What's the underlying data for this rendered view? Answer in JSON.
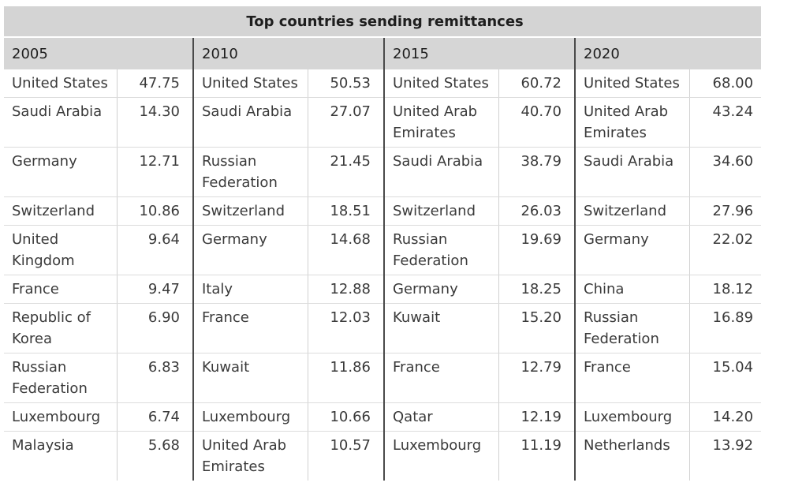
{
  "table": {
    "title": "Top countries sending remittances",
    "years": [
      "2005",
      "2010",
      "2015",
      "2020"
    ],
    "rows": [
      [
        [
          "United States",
          "47.75"
        ],
        [
          "United States",
          "50.53"
        ],
        [
          "United States",
          "60.72"
        ],
        [
          "United States",
          "68.00"
        ]
      ],
      [
        [
          "Saudi Arabia",
          "14.30"
        ],
        [
          "Saudi Arabia",
          "27.07"
        ],
        [
          "United Arab Emirates",
          "40.70"
        ],
        [
          "United Arab Emirates",
          "43.24"
        ]
      ],
      [
        [
          "Germany",
          "12.71"
        ],
        [
          "Russian Federation",
          "21.45"
        ],
        [
          "Saudi Arabia",
          "38.79"
        ],
        [
          "Saudi Arabia",
          "34.60"
        ]
      ],
      [
        [
          "Switzerland",
          "10.86"
        ],
        [
          "Switzerland",
          "18.51"
        ],
        [
          "Switzerland",
          "26.03"
        ],
        [
          "Switzerland",
          "27.96"
        ]
      ],
      [
        [
          "United Kingdom",
          "9.64"
        ],
        [
          "Germany",
          "14.68"
        ],
        [
          "Russian Federation",
          "19.69"
        ],
        [
          "Germany",
          "22.02"
        ]
      ],
      [
        [
          "France",
          "9.47"
        ],
        [
          "Italy",
          "12.88"
        ],
        [
          "Germany",
          "18.25"
        ],
        [
          "China",
          "18.12"
        ]
      ],
      [
        [
          "Republic of Korea",
          "6.90"
        ],
        [
          "France",
          "12.03"
        ],
        [
          "Kuwait",
          "15.20"
        ],
        [
          "Russian Federation",
          "16.89"
        ]
      ],
      [
        [
          "Russian Federation",
          "6.83"
        ],
        [
          "Kuwait",
          "11.86"
        ],
        [
          "France",
          "12.79"
        ],
        [
          "France",
          "15.04"
        ]
      ],
      [
        [
          "Luxembourg",
          "6.74"
        ],
        [
          "Luxembourg",
          "10.66"
        ],
        [
          "Qatar",
          "12.19"
        ],
        [
          "Luxembourg",
          "14.20"
        ]
      ],
      [
        [
          "Malaysia",
          "5.68"
        ],
        [
          "United Arab Emirates",
          "10.57"
        ],
        [
          "Luxembourg",
          "11.19"
        ],
        [
          "Netherlands",
          "13.92"
        ]
      ]
    ]
  }
}
